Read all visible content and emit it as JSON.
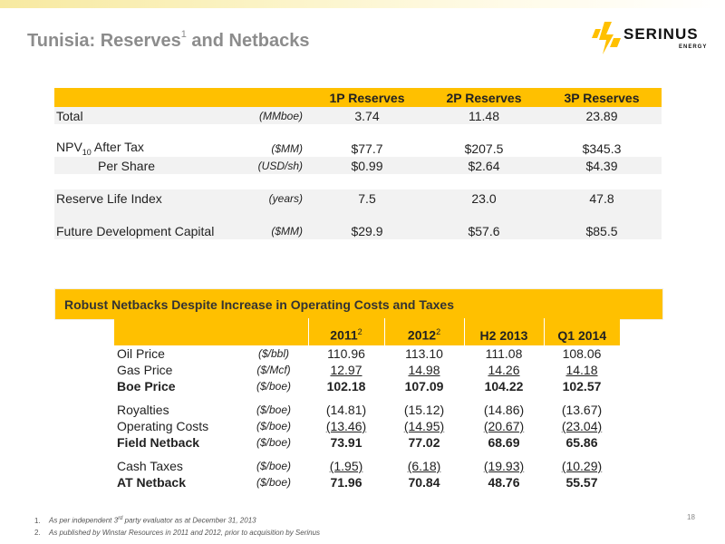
{
  "title": {
    "main": "Tunisia: Reserves",
    "sup": "1",
    "rest": " and Netbacks"
  },
  "logo": {
    "name": "SERINUS",
    "sub": "ENERGY"
  },
  "reserves": {
    "headers": [
      "1P Reserves",
      "2P Reserves",
      "3P Reserves"
    ],
    "rows": [
      {
        "label": "Total",
        "unit": "(MMboe)",
        "values": [
          "3.74",
          "11.48",
          "23.89"
        ]
      },
      {
        "label": "NPV",
        "sub": "10",
        "label_rest": " After Tax",
        "unit": "($MM)",
        "values": [
          "$77.7",
          "$207.5",
          "$345.3"
        ]
      },
      {
        "label": "Per Share",
        "unit": "(USD/sh)",
        "values": [
          "$0.99",
          "$2.64",
          "$4.39"
        ]
      },
      {
        "label": "Reserve Life Index",
        "unit": "(years)",
        "values": [
          "7.5",
          "23.0",
          "47.8"
        ]
      },
      {
        "label": "Future Development Capital",
        "unit": "($MM)",
        "values": [
          "$29.9",
          "$57.6",
          "$85.5"
        ]
      }
    ]
  },
  "banner": "Robust Netbacks Despite Increase in Operating Costs and Taxes",
  "netbacks": {
    "headers": [
      {
        "text": "2011",
        "sup": "2"
      },
      {
        "text": "2012",
        "sup": "2"
      },
      {
        "text": "H2 2013",
        "sup": ""
      },
      {
        "text": "Q1 2014",
        "sup": ""
      }
    ],
    "rows": [
      {
        "label": "Oil Price",
        "unit": "($/bbl)",
        "values": [
          "110.96",
          "113.10",
          "111.08",
          "108.06"
        ]
      },
      {
        "label": "Gas Price",
        "unit": "($/Mcf)",
        "values": [
          "12.97",
          "14.98",
          "14.26",
          "14.18"
        ]
      },
      {
        "label": "Boe Price",
        "unit": "($/boe)",
        "values": [
          "102.18",
          "107.09",
          "104.22",
          "102.57"
        ]
      },
      {
        "label": "Royalties",
        "unit": "($/boe)",
        "values": [
          "(14.81)",
          "(15.12)",
          "(14.86)",
          "(13.67)"
        ]
      },
      {
        "label": "Operating Costs",
        "unit": "($/boe)",
        "values": [
          "(13.46)",
          "(14.95)",
          "(20.67)",
          "(23.04)"
        ]
      },
      {
        "label": "Field Netback",
        "unit": "($/boe)",
        "values": [
          "73.91",
          "77.02",
          "68.69",
          "65.86"
        ]
      },
      {
        "label": "Cash Taxes",
        "unit": "($/boe)",
        "values": [
          "(1.95)",
          "(6.18)",
          "(19.93)",
          "(10.29)"
        ]
      },
      {
        "label": "AT Netback",
        "unit": "($/boe)",
        "values": [
          "71.96",
          "70.84",
          "48.76",
          "55.57"
        ]
      }
    ]
  },
  "footnotes": [
    {
      "num": "1.",
      "pre": "As per independent 3",
      "sup": "rd",
      "post": " party evaluator as at December 31, 2013"
    },
    {
      "num": "2.",
      "pre": "As published by Winstar Resources in 2011 and 2012, prior to acquisition by Serinus",
      "sup": "",
      "post": ""
    }
  ],
  "page_number": "18",
  "colors": {
    "accent": "#ffc000",
    "title": "#8c8c8c"
  }
}
